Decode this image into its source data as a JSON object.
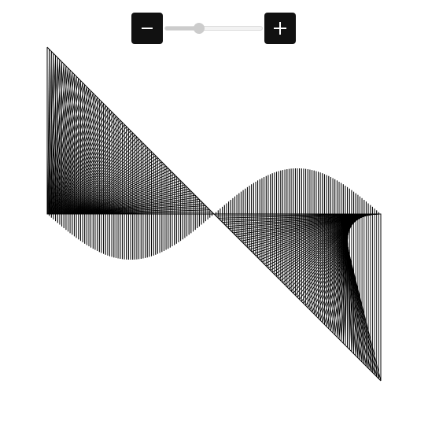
{
  "zoom": {
    "out_icon": "minus-icon",
    "in_icon": "plus-icon",
    "slider_value": 0.35
  },
  "colors": {
    "button_bg": "#111111",
    "button_fg": "#ffffff",
    "track": "#f2f2f2",
    "track_fill": "#cccccc",
    "thumb": "#cccccc",
    "stroke": "#000000",
    "background": "#ffffff"
  },
  "artwork": {
    "icon": "string-art-wave",
    "line_count": 80
  }
}
